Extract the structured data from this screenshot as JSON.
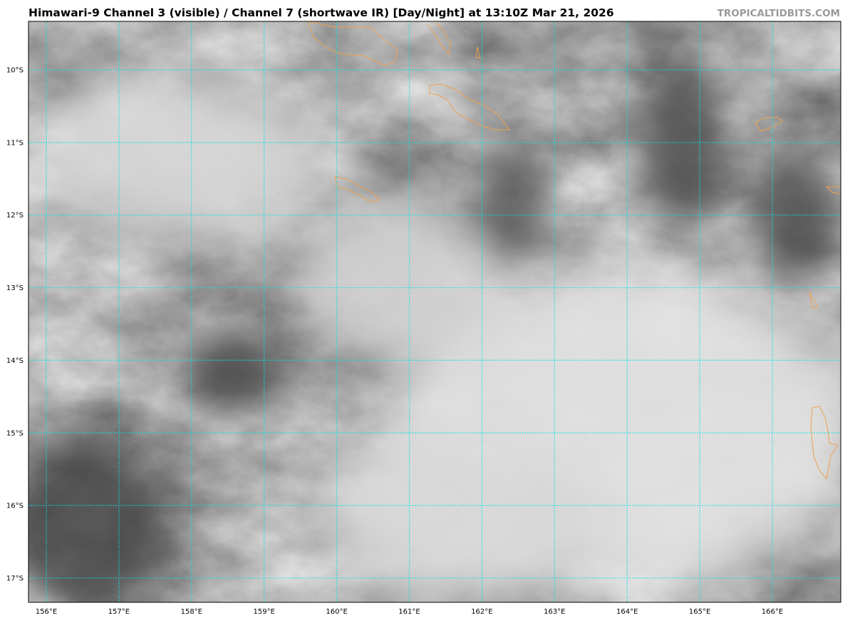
{
  "header": {
    "title": "Himawari-9 Channel 3 (visible) / Channel 7 (shortwave IR) [Day/Night] at 13:10Z Mar 21, 2026",
    "watermark": "TROPICALTIDBITS.COM"
  },
  "map": {
    "imagery": "satellite grayscale clouds",
    "gridline_color": "#00e5e5",
    "coastline_color": "#f0a050",
    "latitude_labels": [
      "10°S",
      "11°S",
      "12°S",
      "13°S",
      "14°S",
      "15°S",
      "16°S",
      "17°S"
    ],
    "longitude_labels": [
      "156°E",
      "157°E",
      "158°E",
      "159°E",
      "160°E",
      "161°E",
      "162°E",
      "163°E",
      "164°E",
      "165°E",
      "166°E"
    ]
  }
}
